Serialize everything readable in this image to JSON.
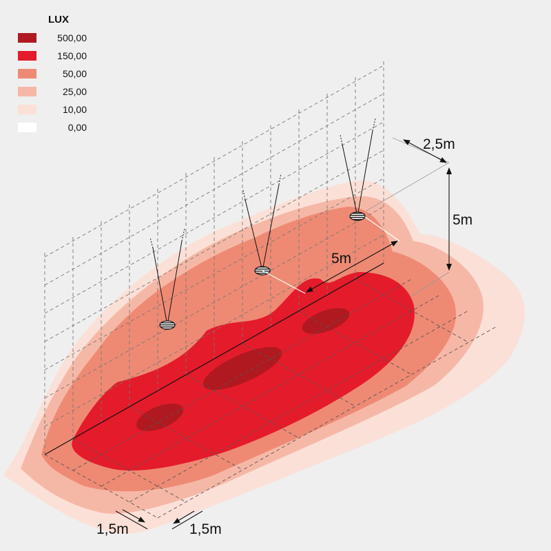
{
  "legend": {
    "title": "LUX",
    "items": [
      {
        "label": "500,00",
        "color": "#b0191f"
      },
      {
        "label": "150,00",
        "color": "#e41b2b"
      },
      {
        "label": "50,00",
        "color": "#ee8a74"
      },
      {
        "label": "25,00",
        "color": "#f6b8a6"
      },
      {
        "label": "10,00",
        "color": "#fbe0d8"
      },
      {
        "label": "0,00",
        "color": "#ffffff"
      }
    ]
  },
  "dimensions": {
    "spacing_top": "2,5m",
    "height": "5m",
    "luminaire_spacing": "5m",
    "bottom_left": "1,5m",
    "bottom_right": "1,5m"
  }
}
